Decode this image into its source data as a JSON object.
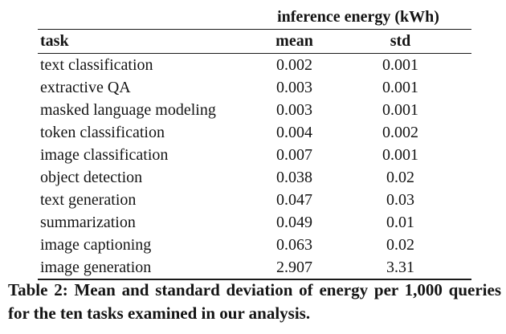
{
  "table": {
    "span_header": "inference energy (kWh)",
    "columns": {
      "task": "task",
      "mean": "mean",
      "std": "std"
    },
    "rows": [
      {
        "task": "text classification",
        "mean": "0.002",
        "std": "0.001"
      },
      {
        "task": "extractive QA",
        "mean": "0.003",
        "std": "0.001"
      },
      {
        "task": "masked language modeling",
        "mean": "0.003",
        "std": "0.001"
      },
      {
        "task": "token classification",
        "mean": "0.004",
        "std": "0.002"
      },
      {
        "task": "image classification",
        "mean": "0.007",
        "std": "0.001"
      },
      {
        "task": "object detection",
        "mean": "0.038",
        "std": "0.02"
      },
      {
        "task": "text generation",
        "mean": "0.047",
        "std": "0.03"
      },
      {
        "task": "summarization",
        "mean": "0.049",
        "std": "0.01"
      },
      {
        "task": "image captioning",
        "mean": "0.063",
        "std": "0.02"
      },
      {
        "task": "image generation",
        "mean": "2.907",
        "std": "3.31"
      }
    ]
  },
  "caption": "Table 2: Mean and standard deviation of energy per 1,000 queries for the ten tasks examined in our analysis.",
  "colors": {
    "text": "#141414",
    "rule": "#1a1a1a",
    "background": "#ffffff"
  }
}
